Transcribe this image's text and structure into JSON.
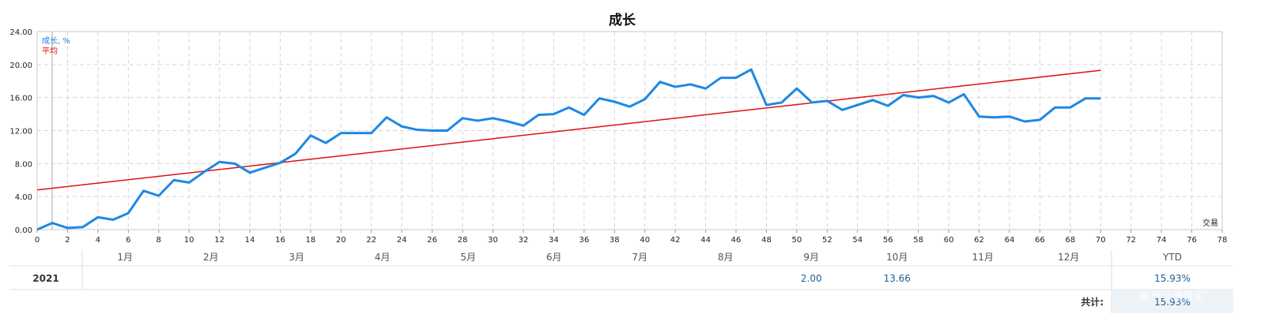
{
  "chart_data": {
    "type": "line",
    "title": "成长",
    "legend": [
      "成长, %",
      "平均"
    ],
    "xlabel": "交易",
    "xlim": [
      0,
      78
    ],
    "ylim": [
      0,
      24
    ],
    "x_ticks": [
      0,
      2,
      4,
      6,
      8,
      10,
      12,
      14,
      16,
      18,
      20,
      22,
      24,
      26,
      28,
      30,
      32,
      34,
      36,
      38,
      40,
      42,
      44,
      46,
      48,
      50,
      52,
      54,
      56,
      58,
      60,
      62,
      64,
      66,
      68,
      70,
      72,
      74,
      76,
      78
    ],
    "y_ticks": [
      "0.00",
      "4.00",
      "8.00",
      "12.00",
      "16.00",
      "20.00",
      "24.00"
    ],
    "grid": true,
    "series": [
      {
        "name": "成长, %",
        "color": "#1e88e5",
        "x": [
          0,
          1,
          2,
          3,
          4,
          5,
          6,
          7,
          8,
          9,
          10,
          11,
          12,
          13,
          14,
          15,
          16,
          17,
          18,
          19,
          20,
          21,
          22,
          23,
          24,
          25,
          26,
          27,
          28,
          29,
          30,
          31,
          32,
          33,
          34,
          35,
          36,
          37,
          38,
          39,
          40,
          41,
          42,
          43,
          44,
          45,
          46,
          47,
          48,
          49,
          50,
          51,
          52,
          53,
          54,
          55,
          56,
          57,
          58,
          59,
          60,
          61,
          62,
          63,
          64,
          65,
          66,
          67,
          68,
          69,
          70
        ],
        "values": [
          0.0,
          0.8,
          0.2,
          0.3,
          1.5,
          1.2,
          2.0,
          4.7,
          4.1,
          6.0,
          5.7,
          7.0,
          8.2,
          8.0,
          6.9,
          7.5,
          8.1,
          9.2,
          11.4,
          10.5,
          11.7,
          11.7,
          11.7,
          13.6,
          12.5,
          12.1,
          12.0,
          12.0,
          13.5,
          13.2,
          13.5,
          13.1,
          12.6,
          13.9,
          14.0,
          14.8,
          13.9,
          15.9,
          15.5,
          14.9,
          15.8,
          17.9,
          17.3,
          17.6,
          17.1,
          18.4,
          18.4,
          19.4,
          15.1,
          15.4,
          17.1,
          15.4,
          15.6,
          14.5,
          15.1,
          15.7,
          15.0,
          16.3,
          16.0,
          16.2,
          15.4,
          16.4,
          13.7,
          13.6,
          13.7,
          13.1,
          13.3,
          14.8,
          14.8,
          15.9,
          15.9
        ]
      },
      {
        "name": "平均",
        "color": "#e01010",
        "x": [
          0,
          70
        ],
        "values": [
          4.8,
          19.3
        ]
      }
    ]
  },
  "table": {
    "months": [
      "1月",
      "2月",
      "3月",
      "4月",
      "5月",
      "6月",
      "7月",
      "8月",
      "9月",
      "10月",
      "11月",
      "12月"
    ],
    "ytd_header": "YTD",
    "year": "2021",
    "month_values": [
      "",
      "",
      "",
      "",
      "",
      "",
      "",
      "",
      "2.00",
      "13.66",
      "",
      ""
    ],
    "ytd_value": "15.93%",
    "total_label": "共计:",
    "total_value": "15.93%"
  },
  "watermark": "值 什么值得买"
}
